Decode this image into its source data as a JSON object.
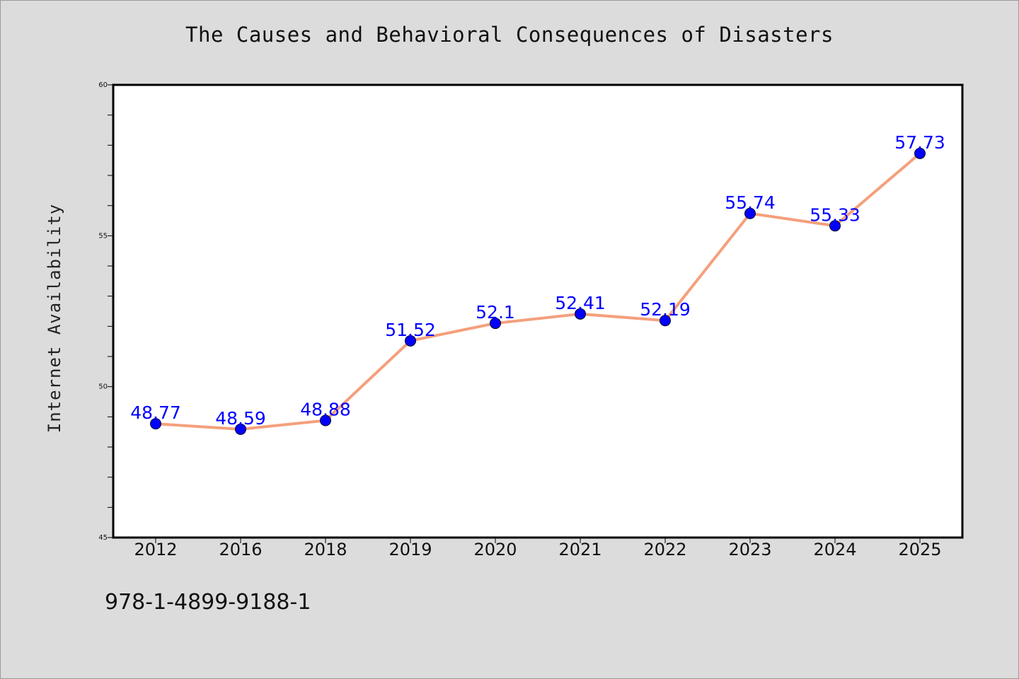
{
  "chart_data": {
    "type": "line",
    "title": "The Causes and Behavioral Consequences of Disasters",
    "xlabel": "",
    "ylabel": "Internet Availability",
    "categories": [
      "2012",
      "2016",
      "2018",
      "2019",
      "2020",
      "2021",
      "2022",
      "2023",
      "2024",
      "2025"
    ],
    "series": [
      {
        "values": [
          48.77,
          48.59,
          48.88,
          51.52,
          52.1,
          52.41,
          52.19,
          55.74,
          55.33,
          57.73
        ],
        "data_labels": [
          "48.77",
          "48.59",
          "48.88",
          "51.52",
          "52.1",
          "52.41",
          "52.19",
          "55.74",
          "55.33",
          "57.73"
        ],
        "line_color": "#f4a07c",
        "marker_color": "#0000ff"
      }
    ],
    "ylim": [
      45,
      60
    ],
    "yticks": [
      "45",
      "50",
      "55",
      "60"
    ],
    "grid": false,
    "legend": "none",
    "plot_background": "#ffffff",
    "page_background": "#dcdcdc"
  },
  "footer": {
    "code": "978-1-4899-9188-1"
  }
}
